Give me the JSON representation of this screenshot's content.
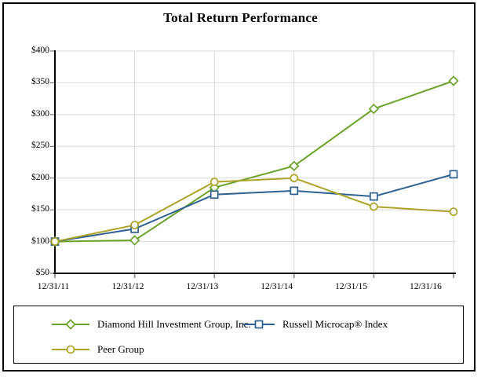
{
  "title": "Total Return Performance",
  "chart_data": {
    "type": "line",
    "categories": [
      "12/31/11",
      "12/31/12",
      "12/31/13",
      "12/31/14",
      "12/31/15",
      "12/31/16"
    ],
    "series": [
      {
        "name": "Diamond Hill Investment Group, Inc.",
        "marker": "diamond",
        "color": "#6BA22B",
        "values": [
          100,
          102,
          185,
          219,
          309,
          353
        ]
      },
      {
        "name": "Russell Microcap® Index",
        "marker": "square",
        "color": "#2E6191",
        "values": [
          100,
          120,
          174,
          180,
          171,
          206
        ]
      },
      {
        "name": "Peer Group",
        "marker": "circle",
        "color": "#ACA428",
        "values": [
          100,
          126,
          194,
          200,
          155,
          147
        ]
      }
    ],
    "title": "Total Return Performance",
    "xlabel": "",
    "ylabel": "",
    "ylim": [
      50,
      400
    ],
    "ytick_step": 50,
    "ytick_labels": [
      "$50",
      "$100",
      "$150",
      "$200",
      "$250",
      "$300",
      "$350",
      "$400"
    ],
    "grid": true,
    "legend_position": "bottom-box",
    "colors": {
      "gridline": "#D9D9D9",
      "axis": "#000000",
      "y_tick": "#595959",
      "x_tick": "#808080",
      "marker_fill": "#FFFFFF",
      "text": "#000000",
      "background": "#FFFFFF"
    }
  }
}
